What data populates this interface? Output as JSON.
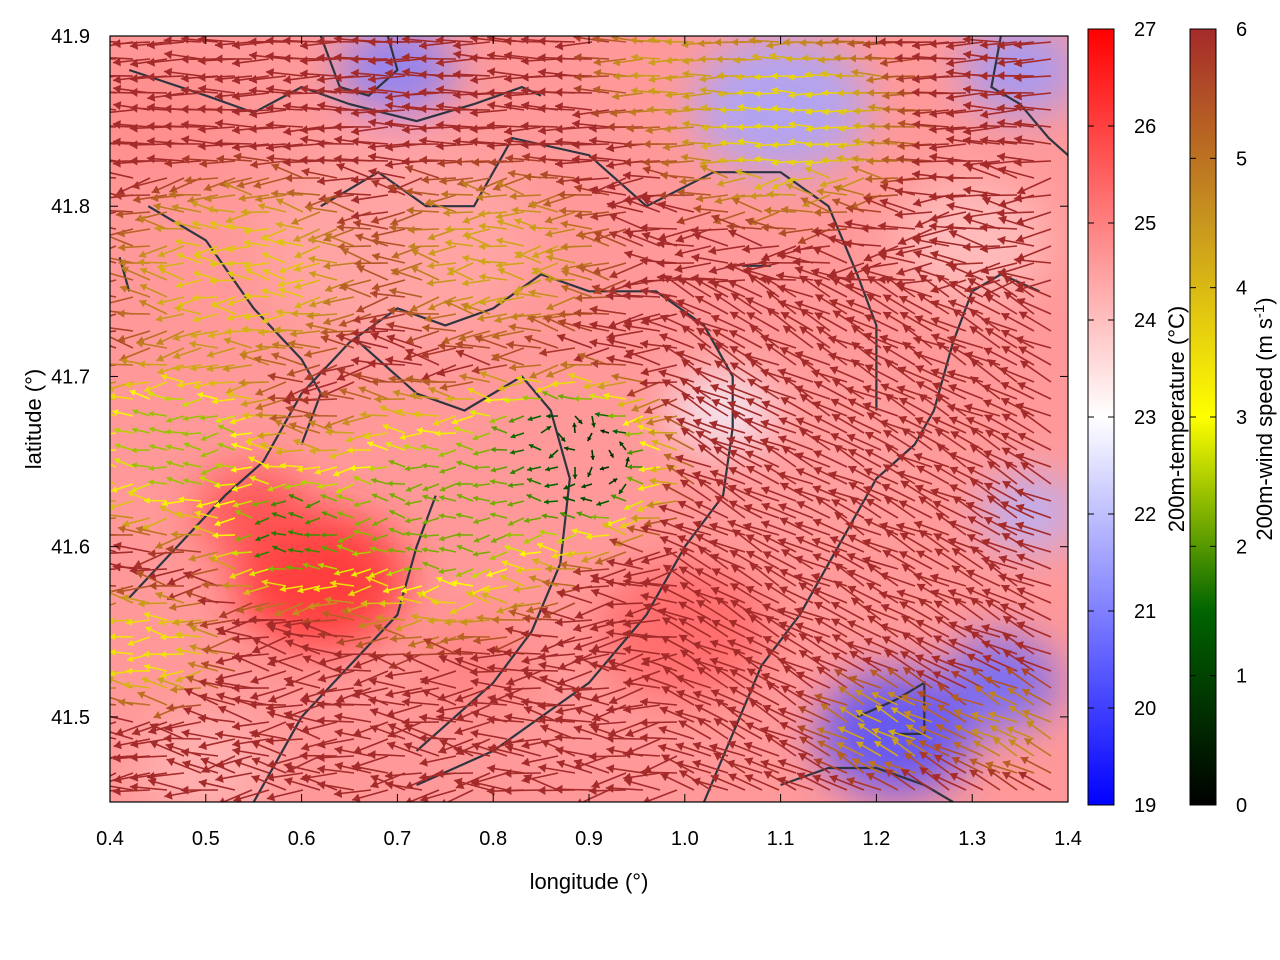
{
  "chart_data": {
    "type": "heatmap",
    "title": "",
    "xlabel": "longitude (°)",
    "ylabel": "latitude (°)",
    "xlim": [
      0.4,
      1.4
    ],
    "ylim": [
      41.45,
      41.9
    ],
    "x_ticks": [
      "0.4",
      "0.5",
      "0.6",
      "0.7",
      "0.8",
      "0.9",
      "1.0",
      "1.1",
      "1.2",
      "1.3",
      "1.4"
    ],
    "y_ticks": [
      "41.5",
      "41.6",
      "41.7",
      "41.8",
      "41.9"
    ],
    "grid": false,
    "colorbars": [
      {
        "label": "200m-temperature (°C)",
        "range": [
          19,
          27
        ],
        "ticks": [
          "19",
          "20",
          "21",
          "22",
          "23",
          "24",
          "25",
          "26",
          "27"
        ],
        "colors": [
          "#0000ff",
          "#ffffff",
          "#ff0000"
        ]
      },
      {
        "label_main": "200m-wind speed (m s",
        "label_sup": "-1",
        "label_end": ")",
        "range": [
          0,
          6
        ],
        "ticks": [
          "0",
          "1",
          "2",
          "3",
          "4",
          "5",
          "6"
        ],
        "colors": [
          "#000000",
          "#006400",
          "#ffff00",
          "#c8961e",
          "#a52a2a"
        ]
      }
    ],
    "temperature_blobs": [
      {
        "lon": 0.62,
        "lat": 41.58,
        "r": 0.09,
        "t": 26.3
      },
      {
        "lon": 0.55,
        "lat": 41.62,
        "r": 0.06,
        "t": 25.8
      },
      {
        "lon": 0.78,
        "lat": 41.53,
        "r": 0.06,
        "t": 25.0
      },
      {
        "lon": 0.92,
        "lat": 41.66,
        "r": 0.08,
        "t": 24.6
      },
      {
        "lon": 1.0,
        "lat": 41.55,
        "r": 0.09,
        "t": 25.4
      },
      {
        "lon": 0.7,
        "lat": 41.78,
        "r": 0.14,
        "t": 24.4
      },
      {
        "lon": 0.45,
        "lat": 41.85,
        "r": 0.08,
        "t": 24.8
      },
      {
        "lon": 1.15,
        "lat": 41.65,
        "r": 0.1,
        "t": 24.5
      },
      {
        "lon": 1.3,
        "lat": 41.78,
        "r": 0.08,
        "t": 24.0
      },
      {
        "lon": 1.04,
        "lat": 41.68,
        "r": 0.05,
        "t": 22.8
      },
      {
        "lon": 0.7,
        "lat": 41.88,
        "r": 0.06,
        "t": 21.0
      },
      {
        "lon": 1.1,
        "lat": 41.86,
        "r": 0.09,
        "t": 21.6
      },
      {
        "lon": 1.35,
        "lat": 41.88,
        "r": 0.06,
        "t": 21.4
      },
      {
        "lon": 1.22,
        "lat": 41.49,
        "r": 0.08,
        "t": 20.2
      },
      {
        "lon": 1.33,
        "lat": 41.52,
        "r": 0.06,
        "t": 20.6
      },
      {
        "lon": 1.36,
        "lat": 41.62,
        "r": 0.05,
        "t": 21.8
      },
      {
        "lon": 0.5,
        "lat": 41.47,
        "r": 0.07,
        "t": 24.2
      }
    ],
    "wind_regions": [
      {
        "lon": 0.88,
        "lat": 41.65,
        "r": 0.09,
        "speed": 0.5
      },
      {
        "lon": 0.6,
        "lat": 41.61,
        "r": 0.07,
        "speed": 1.6
      },
      {
        "lon": 0.75,
        "lat": 41.62,
        "r": 0.12,
        "speed": 2.2
      },
      {
        "lon": 0.48,
        "lat": 41.66,
        "r": 0.09,
        "speed": 2.4
      },
      {
        "lon": 0.45,
        "lat": 41.54,
        "r": 0.06,
        "speed": 3.4
      },
      {
        "lon": 0.55,
        "lat": 41.76,
        "r": 0.1,
        "speed": 3.8
      },
      {
        "lon": 0.82,
        "lat": 41.77,
        "r": 0.09,
        "speed": 4.3
      },
      {
        "lon": 1.12,
        "lat": 41.85,
        "r": 0.1,
        "speed": 3.6
      },
      {
        "lon": 1.22,
        "lat": 41.49,
        "r": 0.05,
        "speed": 4.2
      },
      {
        "lon": 1.35,
        "lat": 41.49,
        "r": 0.05,
        "speed": 4.6
      },
      {
        "lon": 1.0,
        "lat": 41.88,
        "r": 0.06,
        "speed": 4.4
      }
    ],
    "wind_field": {
      "background_speed": 6.0
    },
    "contours": [
      [
        [
          0.42,
          41.88
        ],
        [
          0.5,
          41.865
        ],
        [
          0.55,
          41.855
        ],
        [
          0.6,
          41.87
        ],
        [
          0.65,
          41.86
        ],
        [
          0.72,
          41.85
        ],
        [
          0.78,
          41.86
        ],
        [
          0.83,
          41.87
        ],
        [
          0.85,
          41.865
        ]
      ],
      [
        [
          0.62,
          41.9
        ],
        [
          0.64,
          41.87
        ],
        [
          0.67,
          41.865
        ],
        [
          0.7,
          41.88
        ],
        [
          0.69,
          41.9
        ]
      ],
      [
        [
          0.62,
          41.8
        ],
        [
          0.68,
          41.82
        ],
        [
          0.73,
          41.8
        ],
        [
          0.78,
          41.8
        ],
        [
          0.82,
          41.84
        ],
        [
          0.9,
          41.83
        ],
        [
          0.96,
          41.8
        ],
        [
          1.03,
          41.82
        ],
        [
          1.1,
          41.82
        ],
        [
          1.15,
          41.8
        ],
        [
          1.18,
          41.76
        ],
        [
          1.2,
          41.73
        ],
        [
          1.2,
          41.68
        ]
      ],
      [
        [
          0.56,
          41.65
        ],
        [
          0.6,
          41.69
        ],
        [
          0.65,
          41.72
        ],
        [
          0.7,
          41.74
        ],
        [
          0.75,
          41.73
        ],
        [
          0.8,
          41.74
        ],
        [
          0.85,
          41.76
        ],
        [
          0.9,
          41.75
        ],
        [
          0.97,
          41.75
        ],
        [
          1.02,
          41.73
        ],
        [
          1.05,
          41.7
        ],
        [
          1.05,
          41.67
        ],
        [
          1.04,
          41.63
        ],
        [
          1.0,
          41.6
        ],
        [
          0.96,
          41.56
        ],
        [
          0.9,
          41.52
        ],
        [
          0.85,
          41.5
        ],
        [
          0.8,
          41.48
        ],
        [
          0.76,
          41.47
        ],
        [
          0.72,
          41.46
        ]
      ],
      [
        [
          0.42,
          41.57
        ],
        [
          0.47,
          41.6
        ],
        [
          0.52,
          41.63
        ],
        [
          0.56,
          41.65
        ]
      ],
      [
        [
          0.44,
          41.8
        ],
        [
          0.5,
          41.78
        ],
        [
          0.55,
          41.74
        ],
        [
          0.6,
          41.71
        ],
        [
          0.62,
          41.69
        ],
        [
          0.6,
          41.66
        ]
      ],
      [
        [
          0.66,
          41.72
        ],
        [
          0.72,
          41.69
        ],
        [
          0.77,
          41.68
        ],
        [
          0.83,
          41.7
        ],
        [
          0.86,
          41.68
        ],
        [
          0.88,
          41.64
        ],
        [
          0.87,
          41.59
        ],
        [
          0.84,
          41.55
        ],
        [
          0.8,
          41.52
        ],
        [
          0.76,
          41.5
        ],
        [
          0.72,
          41.48
        ]
      ],
      [
        [
          1.02,
          41.45
        ],
        [
          1.05,
          41.49
        ],
        [
          1.08,
          41.53
        ],
        [
          1.12,
          41.56
        ],
        [
          1.16,
          41.6
        ],
        [
          1.2,
          41.64
        ],
        [
          1.24,
          41.66
        ],
        [
          1.26,
          41.68
        ],
        [
          1.28,
          41.72
        ],
        [
          1.3,
          41.75
        ],
        [
          1.33,
          41.76
        ],
        [
          1.37,
          41.75
        ]
      ],
      [
        [
          0.55,
          41.45
        ],
        [
          0.6,
          41.5
        ],
        [
          0.65,
          41.53
        ],
        [
          0.7,
          41.56
        ],
        [
          0.72,
          41.6
        ],
        [
          0.74,
          41.63
        ]
      ],
      [
        [
          1.18,
          41.5
        ],
        [
          1.22,
          41.51
        ],
        [
          1.25,
          41.52
        ],
        [
          1.25,
          41.49
        ],
        [
          1.22,
          41.49
        ]
      ],
      [
        [
          1.1,
          41.46
        ],
        [
          1.15,
          41.47
        ],
        [
          1.2,
          41.47
        ],
        [
          1.25,
          41.46
        ],
        [
          1.28,
          41.45
        ]
      ],
      [
        [
          1.33,
          41.9
        ],
        [
          1.32,
          41.87
        ],
        [
          1.35,
          41.86
        ],
        [
          1.38,
          41.84
        ],
        [
          1.4,
          41.83
        ]
      ],
      [
        [
          0.41,
          41.77
        ],
        [
          0.42,
          41.75
        ]
      ],
      [
        [
          1.06,
          41.765
        ],
        [
          1.09,
          41.765
        ]
      ]
    ]
  }
}
